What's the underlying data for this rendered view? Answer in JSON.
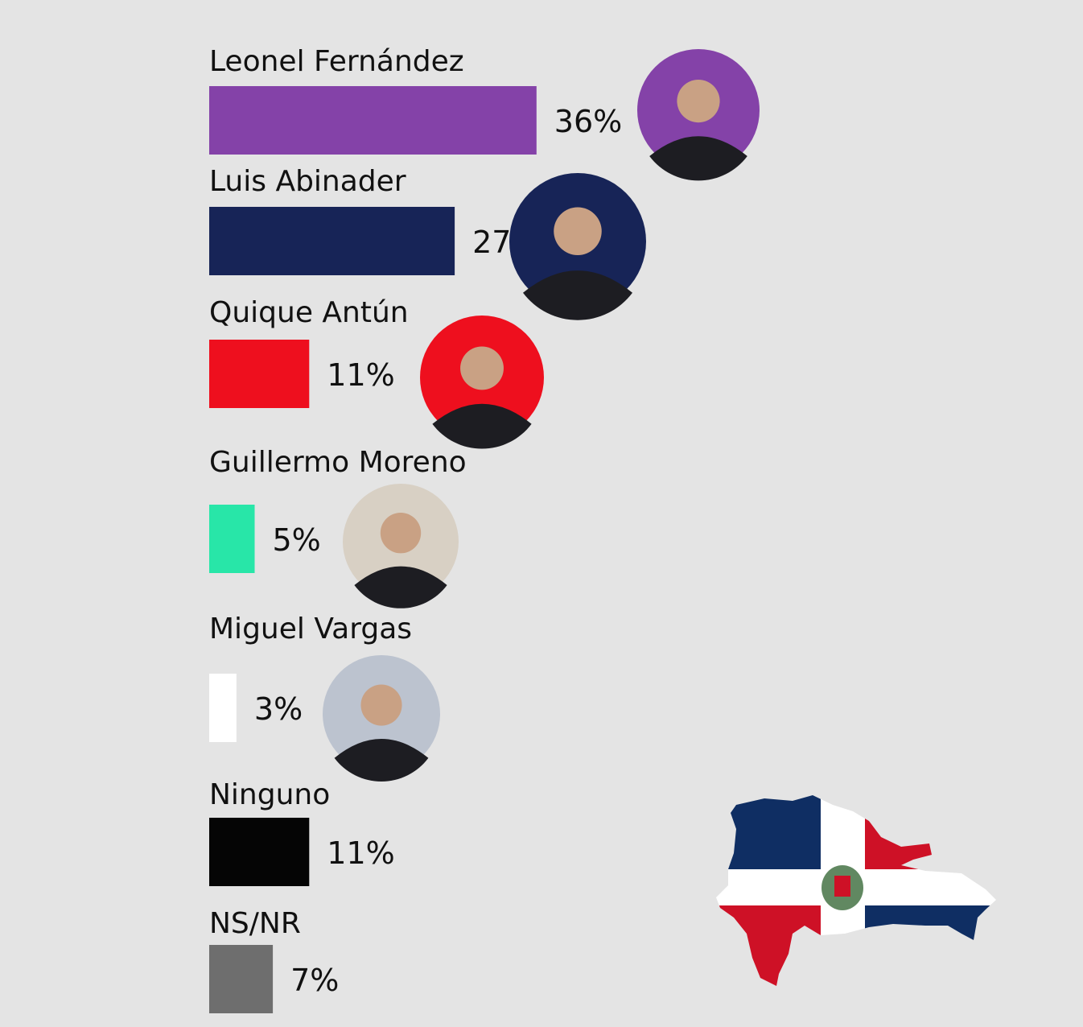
{
  "chart_data": {
    "type": "bar",
    "orientation": "horizontal",
    "categories": [
      "Leonel Fernández",
      "Luis Abinader",
      "Quique Antún",
      "Guillermo Moreno",
      "Miguel Vargas",
      "Ninguno",
      "NS/NR"
    ],
    "values": [
      36,
      27,
      11,
      5,
      3,
      11,
      7
    ],
    "value_labels": [
      "36%",
      "27%",
      "11%",
      "5%",
      "3%",
      "11%",
      "7%"
    ],
    "colors": [
      "#8442a8",
      "#172457",
      "#ee0f1e",
      "#28e6a8",
      "#ffffff",
      "#050505",
      "#6e6e6e"
    ]
  }
}
